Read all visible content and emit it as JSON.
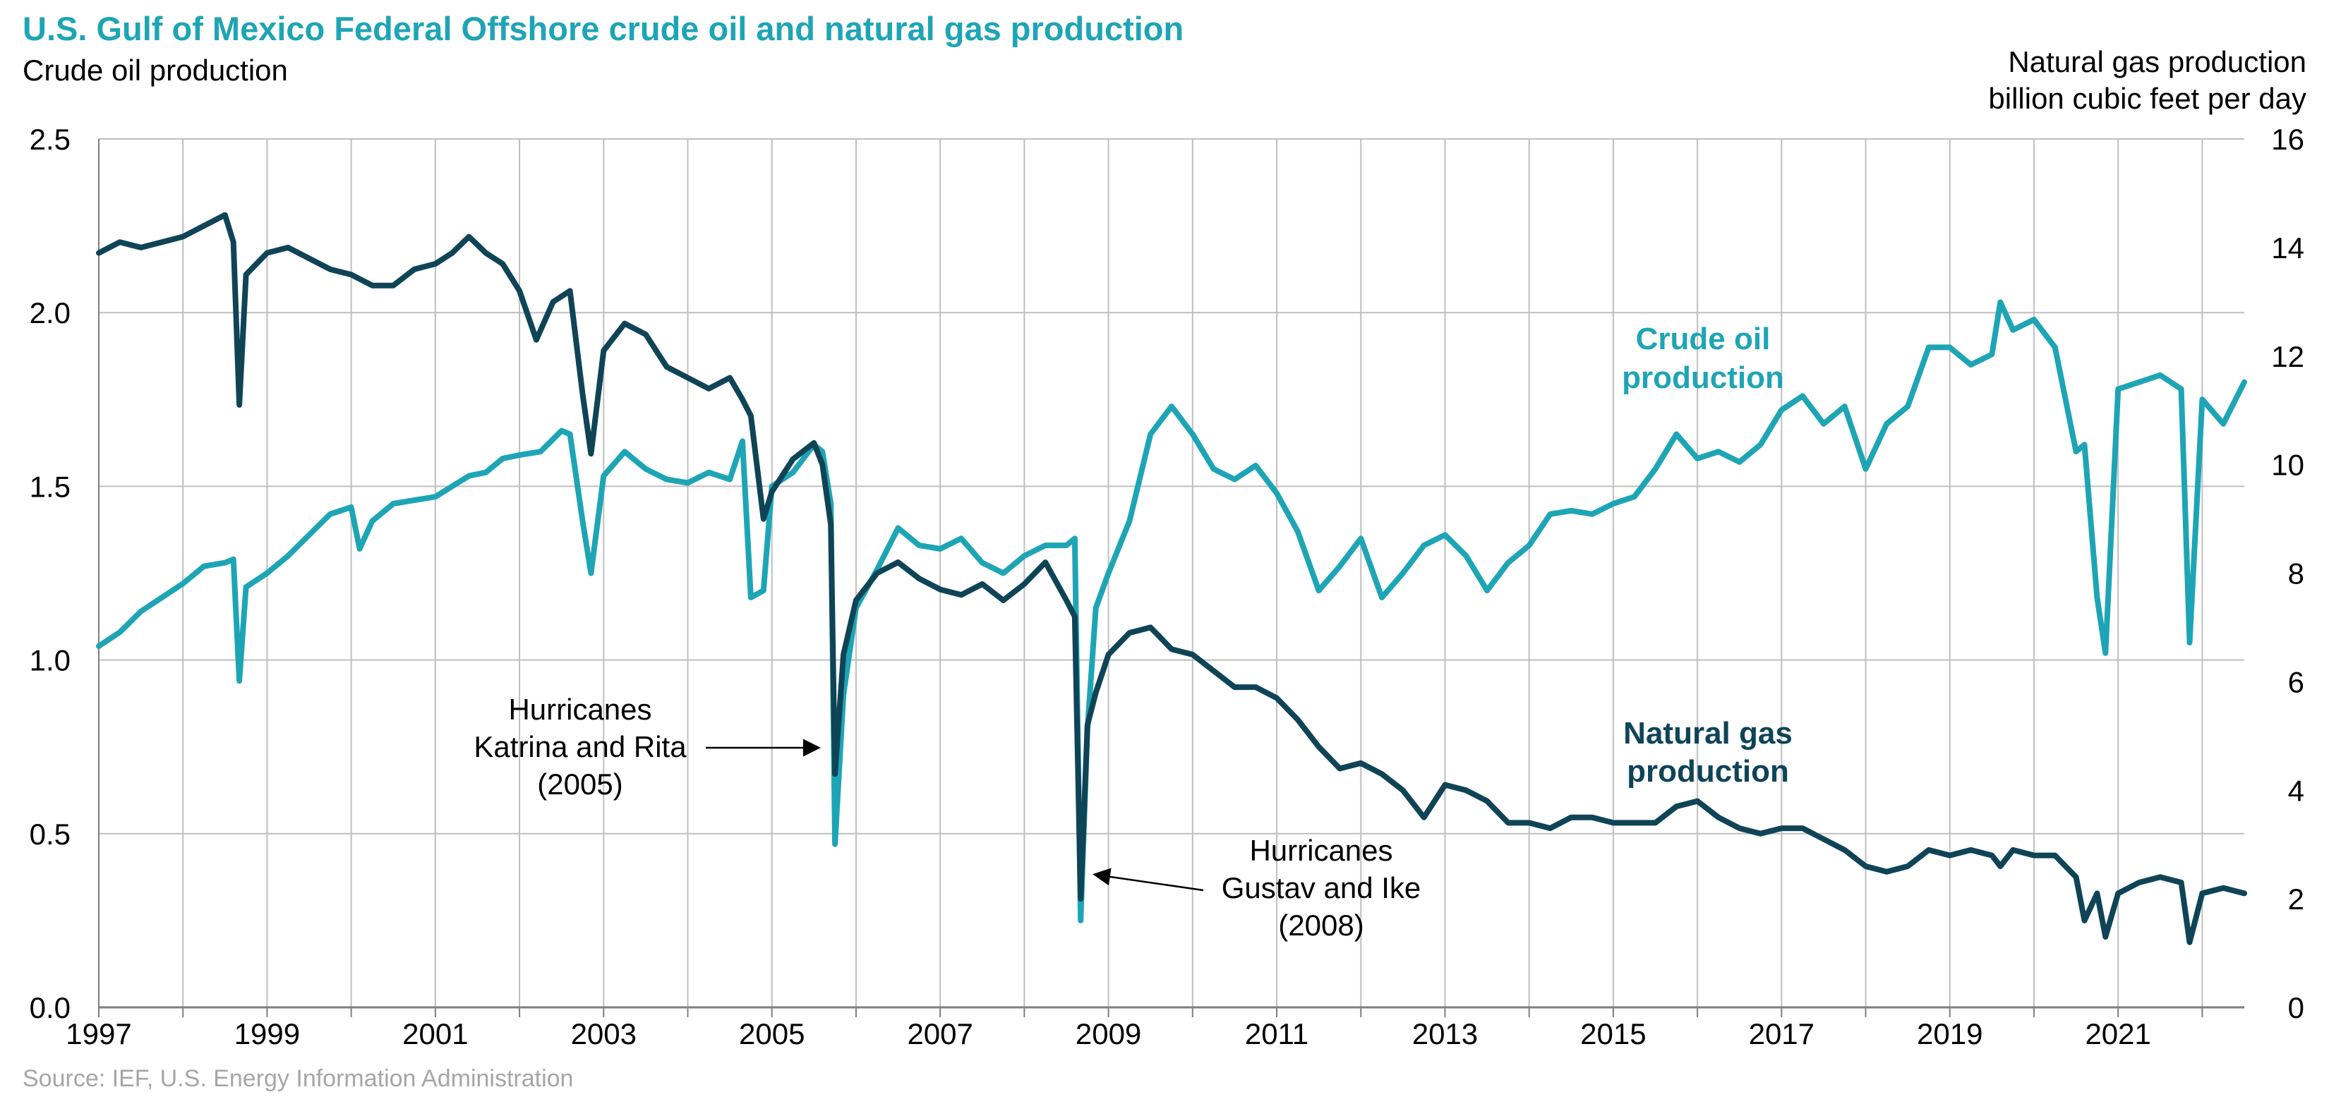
{
  "chart_data": {
    "type": "line",
    "title": "U.S. Gulf of Mexico Federal Offshore crude oil and natural gas production",
    "ylabel_left": "Crude oil production",
    "ylabel_right_line1": "Natural gas production",
    "ylabel_right_line2": "billion cubic feet per day",
    "source": "Source: IEF, U.S. Energy Information Administration",
    "ylim_left": [
      0,
      2.5
    ],
    "ylim_right": [
      0,
      16
    ],
    "xlim": [
      1997,
      2022.5
    ],
    "left_ticks": [
      "0.0",
      "0.5",
      "1.0",
      "1.5",
      "2.0",
      "2.5"
    ],
    "right_ticks": [
      "0",
      "2",
      "4",
      "6",
      "8",
      "10",
      "12",
      "14",
      "16"
    ],
    "x_ticks": [
      "1997",
      "1999",
      "2001",
      "2003",
      "2005",
      "2007",
      "2009",
      "2011",
      "2013",
      "2015",
      "2017",
      "2019",
      "2021"
    ],
    "grid": true,
    "colors": {
      "oil": "#1ea5b5",
      "gas": "#0f4457",
      "grid": "#bfbfbf",
      "axis": "#7f7f7f"
    },
    "series": [
      {
        "name": "Crude oil production",
        "label_line1": "Crude oil",
        "label_line2": "production",
        "axis": "left",
        "x": [
          1997.0,
          1997.25,
          1997.5,
          1997.75,
          1998.0,
          1998.25,
          1998.5,
          1998.6,
          1998.67,
          1998.75,
          1999.0,
          1999.25,
          1999.5,
          1999.75,
          2000.0,
          2000.1,
          2000.25,
          2000.5,
          2000.75,
          2001.0,
          2001.2,
          2001.4,
          2001.6,
          2001.8,
          2002.0,
          2002.25,
          2002.5,
          2002.6,
          2002.75,
          2002.85,
          2003.0,
          2003.25,
          2003.5,
          2003.75,
          2004.0,
          2004.25,
          2004.5,
          2004.65,
          2004.75,
          2004.9,
          2005.0,
          2005.25,
          2005.5,
          2005.6,
          2005.7,
          2005.75,
          2005.85,
          2006.0,
          2006.25,
          2006.5,
          2006.75,
          2007.0,
          2007.25,
          2007.5,
          2007.75,
          2008.0,
          2008.25,
          2008.5,
          2008.6,
          2008.67,
          2008.75,
          2008.85,
          2009.0,
          2009.25,
          2009.5,
          2009.75,
          2010.0,
          2010.25,
          2010.5,
          2010.75,
          2011.0,
          2011.25,
          2011.5,
          2011.75,
          2012.0,
          2012.25,
          2012.5,
          2012.75,
          2013.0,
          2013.25,
          2013.5,
          2013.75,
          2014.0,
          2014.25,
          2014.5,
          2014.75,
          2015.0,
          2015.25,
          2015.5,
          2015.75,
          2016.0,
          2016.25,
          2016.5,
          2016.75,
          2017.0,
          2017.25,
          2017.5,
          2017.75,
          2018.0,
          2018.25,
          2018.5,
          2018.75,
          2019.0,
          2019.25,
          2019.5,
          2019.6,
          2019.75,
          2020.0,
          2020.25,
          2020.5,
          2020.6,
          2020.75,
          2020.85,
          2021.0,
          2021.25,
          2021.5,
          2021.75,
          2021.85,
          2022.0,
          2022.25,
          2022.5
        ],
        "values": [
          1.04,
          1.08,
          1.14,
          1.18,
          1.22,
          1.27,
          1.28,
          1.29,
          0.94,
          1.21,
          1.25,
          1.3,
          1.36,
          1.42,
          1.44,
          1.32,
          1.4,
          1.45,
          1.46,
          1.47,
          1.5,
          1.53,
          1.54,
          1.58,
          1.59,
          1.6,
          1.66,
          1.65,
          1.4,
          1.25,
          1.53,
          1.6,
          1.55,
          1.52,
          1.51,
          1.54,
          1.52,
          1.63,
          1.18,
          1.2,
          1.5,
          1.54,
          1.62,
          1.6,
          1.45,
          0.47,
          0.9,
          1.15,
          1.26,
          1.38,
          1.33,
          1.32,
          1.35,
          1.28,
          1.25,
          1.3,
          1.33,
          1.33,
          1.35,
          0.25,
          0.8,
          1.15,
          1.25,
          1.4,
          1.65,
          1.73,
          1.65,
          1.55,
          1.52,
          1.56,
          1.48,
          1.37,
          1.2,
          1.27,
          1.35,
          1.18,
          1.25,
          1.33,
          1.36,
          1.3,
          1.2,
          1.28,
          1.33,
          1.42,
          1.43,
          1.42,
          1.45,
          1.47,
          1.55,
          1.65,
          1.58,
          1.6,
          1.57,
          1.62,
          1.72,
          1.76,
          1.68,
          1.73,
          1.55,
          1.68,
          1.73,
          1.9,
          1.9,
          1.85,
          1.88,
          2.03,
          1.95,
          1.98,
          1.9,
          1.6,
          1.62,
          1.18,
          1.02,
          1.78,
          1.8,
          1.82,
          1.78,
          1.05,
          1.75,
          1.68,
          1.8
        ]
      },
      {
        "name": "Natural gas production",
        "label_line1": "Natural gas",
        "label_line2": "production",
        "axis": "right",
        "x": [
          1997.0,
          1997.25,
          1997.5,
          1997.75,
          1998.0,
          1998.25,
          1998.5,
          1998.6,
          1998.67,
          1998.75,
          1999.0,
          1999.25,
          1999.5,
          1999.75,
          2000.0,
          2000.25,
          2000.5,
          2000.75,
          2001.0,
          2001.2,
          2001.4,
          2001.6,
          2001.8,
          2002.0,
          2002.2,
          2002.4,
          2002.6,
          2002.75,
          2002.85,
          2003.0,
          2003.25,
          2003.5,
          2003.75,
          2004.0,
          2004.25,
          2004.5,
          2004.65,
          2004.75,
          2004.9,
          2005.0,
          2005.25,
          2005.5,
          2005.6,
          2005.7,
          2005.75,
          2005.85,
          2006.0,
          2006.25,
          2006.5,
          2006.75,
          2007.0,
          2007.25,
          2007.5,
          2007.75,
          2008.0,
          2008.25,
          2008.5,
          2008.6,
          2008.67,
          2008.75,
          2008.85,
          2009.0,
          2009.25,
          2009.5,
          2009.75,
          2010.0,
          2010.25,
          2010.5,
          2010.75,
          2011.0,
          2011.25,
          2011.5,
          2011.75,
          2012.0,
          2012.25,
          2012.5,
          2012.75,
          2013.0,
          2013.25,
          2013.5,
          2013.75,
          2014.0,
          2014.25,
          2014.5,
          2014.75,
          2015.0,
          2015.25,
          2015.5,
          2015.75,
          2016.0,
          2016.25,
          2016.5,
          2016.75,
          2017.0,
          2017.25,
          2017.5,
          2017.75,
          2018.0,
          2018.25,
          2018.5,
          2018.75,
          2019.0,
          2019.25,
          2019.5,
          2019.6,
          2019.75,
          2020.0,
          2020.25,
          2020.5,
          2020.6,
          2020.75,
          2020.85,
          2021.0,
          2021.25,
          2021.5,
          2021.75,
          2021.85,
          2022.0,
          2022.25,
          2022.5
        ],
        "values": [
          13.9,
          14.1,
          14.0,
          14.1,
          14.2,
          14.4,
          14.6,
          14.1,
          11.1,
          13.5,
          13.9,
          14.0,
          13.8,
          13.6,
          13.5,
          13.3,
          13.3,
          13.6,
          13.7,
          13.9,
          14.2,
          13.9,
          13.7,
          13.2,
          12.3,
          13.0,
          13.2,
          11.3,
          10.2,
          12.1,
          12.6,
          12.4,
          11.8,
          11.6,
          11.4,
          11.6,
          11.2,
          10.9,
          9.0,
          9.5,
          10.1,
          10.4,
          10.0,
          8.9,
          4.3,
          6.5,
          7.5,
          8.0,
          8.2,
          7.9,
          7.7,
          7.6,
          7.8,
          7.5,
          7.8,
          8.2,
          7.5,
          7.2,
          2.0,
          5.2,
          5.8,
          6.5,
          6.9,
          7.0,
          6.6,
          6.5,
          6.2,
          5.9,
          5.9,
          5.7,
          5.3,
          4.8,
          4.4,
          4.5,
          4.3,
          4.0,
          3.5,
          4.1,
          4.0,
          3.8,
          3.4,
          3.4,
          3.3,
          3.5,
          3.5,
          3.4,
          3.4,
          3.4,
          3.7,
          3.8,
          3.5,
          3.3,
          3.2,
          3.3,
          3.3,
          3.1,
          2.9,
          2.6,
          2.5,
          2.6,
          2.9,
          2.8,
          2.9,
          2.8,
          2.6,
          2.9,
          2.8,
          2.8,
          2.4,
          1.6,
          2.1,
          1.3,
          2.1,
          2.3,
          2.4,
          2.3,
          1.2,
          2.1,
          2.2,
          2.1
        ]
      }
    ],
    "annotations": [
      {
        "id": "katrina",
        "lines": [
          "Hurricanes",
          "Katrina and Rita",
          "(2005)"
        ],
        "x": 2005.75,
        "y": 0.75
      },
      {
        "id": "gustav",
        "lines": [
          "Hurricanes",
          "Gustav and Ike",
          "(2008)"
        ],
        "x": 2008.67,
        "y": 0.38
      }
    ]
  }
}
